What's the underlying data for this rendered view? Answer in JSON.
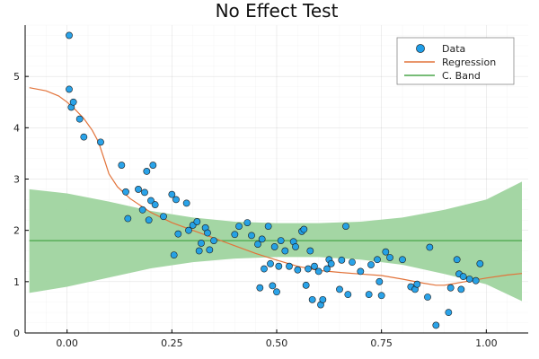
{
  "chart_data": {
    "type": "scatter",
    "title": "No Effect Test",
    "xlabel": "",
    "ylabel": "",
    "xlim": [
      -0.1,
      1.1
    ],
    "ylim": [
      0,
      6
    ],
    "x_ticks": [
      0.0,
      0.25,
      0.5,
      0.75,
      1.0
    ],
    "x_tick_labels": [
      "0.00",
      "0.25",
      "0.50",
      "0.75",
      "1.00"
    ],
    "y_ticks": [
      0,
      1,
      2,
      3,
      4,
      5
    ],
    "y_tick_labels": [
      "0",
      "1",
      "2",
      "3",
      "4",
      "5"
    ],
    "grid": true,
    "legend_position": "top-right",
    "legend": [
      "Data",
      "Regression",
      "C. Band"
    ],
    "colors": {
      "data": "#1f9ee8",
      "regression": "#e2733a",
      "band_fill": "#9fd49f",
      "band_line": "#4aa64a"
    },
    "series": [
      {
        "name": "Data",
        "kind": "scatter",
        "points": [
          [
            0.005,
            5.8
          ],
          [
            0.005,
            4.75
          ],
          [
            0.01,
            4.4
          ],
          [
            0.015,
            4.5
          ],
          [
            0.03,
            4.17
          ],
          [
            0.04,
            3.82
          ],
          [
            0.08,
            3.72
          ],
          [
            0.13,
            3.27
          ],
          [
            0.14,
            2.75
          ],
          [
            0.145,
            2.23
          ],
          [
            0.17,
            2.8
          ],
          [
            0.18,
            2.4
          ],
          [
            0.185,
            2.74
          ],
          [
            0.19,
            3.15
          ],
          [
            0.195,
            2.2
          ],
          [
            0.2,
            2.58
          ],
          [
            0.205,
            3.27
          ],
          [
            0.21,
            2.5
          ],
          [
            0.23,
            2.27
          ],
          [
            0.25,
            2.7
          ],
          [
            0.255,
            1.52
          ],
          [
            0.26,
            2.6
          ],
          [
            0.265,
            1.93
          ],
          [
            0.285,
            2.53
          ],
          [
            0.29,
            2.0
          ],
          [
            0.3,
            2.1
          ],
          [
            0.31,
            2.17
          ],
          [
            0.315,
            1.6
          ],
          [
            0.32,
            1.75
          ],
          [
            0.33,
            2.05
          ],
          [
            0.335,
            1.95
          ],
          [
            0.34,
            1.62
          ],
          [
            0.35,
            1.8
          ],
          [
            0.4,
            1.92
          ],
          [
            0.41,
            2.08
          ],
          [
            0.43,
            2.15
          ],
          [
            0.44,
            1.9
          ],
          [
            0.455,
            1.73
          ],
          [
            0.46,
            0.88
          ],
          [
            0.465,
            1.83
          ],
          [
            0.47,
            1.25
          ],
          [
            0.48,
            2.08
          ],
          [
            0.485,
            1.35
          ],
          [
            0.49,
            0.92
          ],
          [
            0.495,
            1.68
          ],
          [
            0.5,
            0.8
          ],
          [
            0.505,
            1.3
          ],
          [
            0.51,
            1.8
          ],
          [
            0.52,
            1.6
          ],
          [
            0.53,
            1.3
          ],
          [
            0.54,
            1.78
          ],
          [
            0.545,
            1.68
          ],
          [
            0.55,
            1.23
          ],
          [
            0.56,
            1.98
          ],
          [
            0.565,
            2.02
          ],
          [
            0.57,
            0.93
          ],
          [
            0.575,
            1.25
          ],
          [
            0.58,
            1.6
          ],
          [
            0.585,
            0.65
          ],
          [
            0.59,
            1.3
          ],
          [
            0.6,
            1.2
          ],
          [
            0.605,
            0.55
          ],
          [
            0.61,
            0.65
          ],
          [
            0.62,
            1.25
          ],
          [
            0.625,
            1.43
          ],
          [
            0.63,
            1.35
          ],
          [
            0.65,
            0.85
          ],
          [
            0.655,
            1.42
          ],
          [
            0.665,
            2.08
          ],
          [
            0.67,
            0.75
          ],
          [
            0.68,
            1.38
          ],
          [
            0.7,
            1.2
          ],
          [
            0.72,
            0.75
          ],
          [
            0.725,
            1.33
          ],
          [
            0.74,
            1.43
          ],
          [
            0.745,
            1.0
          ],
          [
            0.75,
            0.73
          ],
          [
            0.76,
            1.58
          ],
          [
            0.77,
            1.47
          ],
          [
            0.8,
            1.43
          ],
          [
            0.82,
            0.9
          ],
          [
            0.83,
            0.85
          ],
          [
            0.835,
            0.95
          ],
          [
            0.86,
            0.7
          ],
          [
            0.865,
            1.67
          ],
          [
            0.88,
            0.15
          ],
          [
            0.91,
            0.4
          ],
          [
            0.915,
            0.88
          ],
          [
            0.93,
            1.43
          ],
          [
            0.935,
            1.15
          ],
          [
            0.94,
            0.85
          ],
          [
            0.945,
            1.1
          ],
          [
            0.96,
            1.05
          ],
          [
            0.975,
            1.02
          ],
          [
            0.985,
            1.35
          ]
        ]
      },
      {
        "name": "Regression",
        "kind": "line",
        "points": [
          [
            -0.09,
            4.78
          ],
          [
            -0.05,
            4.72
          ],
          [
            -0.02,
            4.62
          ],
          [
            0.0,
            4.5
          ],
          [
            0.02,
            4.35
          ],
          [
            0.04,
            4.18
          ],
          [
            0.06,
            3.95
          ],
          [
            0.075,
            3.72
          ],
          [
            0.09,
            3.35
          ],
          [
            0.1,
            3.1
          ],
          [
            0.12,
            2.85
          ],
          [
            0.15,
            2.62
          ],
          [
            0.2,
            2.35
          ],
          [
            0.25,
            2.15
          ],
          [
            0.3,
            2.0
          ],
          [
            0.35,
            1.85
          ],
          [
            0.4,
            1.7
          ],
          [
            0.45,
            1.55
          ],
          [
            0.5,
            1.42
          ],
          [
            0.55,
            1.3
          ],
          [
            0.6,
            1.22
          ],
          [
            0.65,
            1.18
          ],
          [
            0.7,
            1.15
          ],
          [
            0.75,
            1.12
          ],
          [
            0.8,
            1.05
          ],
          [
            0.85,
            0.97
          ],
          [
            0.88,
            0.93
          ],
          [
            0.9,
            0.93
          ],
          [
            0.95,
            1.0
          ],
          [
            1.0,
            1.07
          ],
          [
            1.05,
            1.13
          ],
          [
            1.085,
            1.16
          ]
        ]
      },
      {
        "name": "C. Band",
        "kind": "band",
        "center": 1.8,
        "upper": [
          [
            -0.09,
            2.8
          ],
          [
            0.0,
            2.72
          ],
          [
            0.1,
            2.56
          ],
          [
            0.2,
            2.38
          ],
          [
            0.3,
            2.25
          ],
          [
            0.4,
            2.17
          ],
          [
            0.5,
            2.14
          ],
          [
            0.6,
            2.14
          ],
          [
            0.7,
            2.17
          ],
          [
            0.8,
            2.25
          ],
          [
            0.9,
            2.4
          ],
          [
            1.0,
            2.6
          ],
          [
            1.085,
            2.95
          ]
        ],
        "lower": [
          [
            -0.09,
            0.78
          ],
          [
            0.0,
            0.9
          ],
          [
            0.1,
            1.08
          ],
          [
            0.2,
            1.26
          ],
          [
            0.3,
            1.38
          ],
          [
            0.4,
            1.45
          ],
          [
            0.5,
            1.48
          ],
          [
            0.6,
            1.48
          ],
          [
            0.7,
            1.43
          ],
          [
            0.8,
            1.33
          ],
          [
            0.9,
            1.15
          ],
          [
            1.0,
            0.95
          ],
          [
            1.085,
            0.62
          ]
        ]
      }
    ]
  }
}
